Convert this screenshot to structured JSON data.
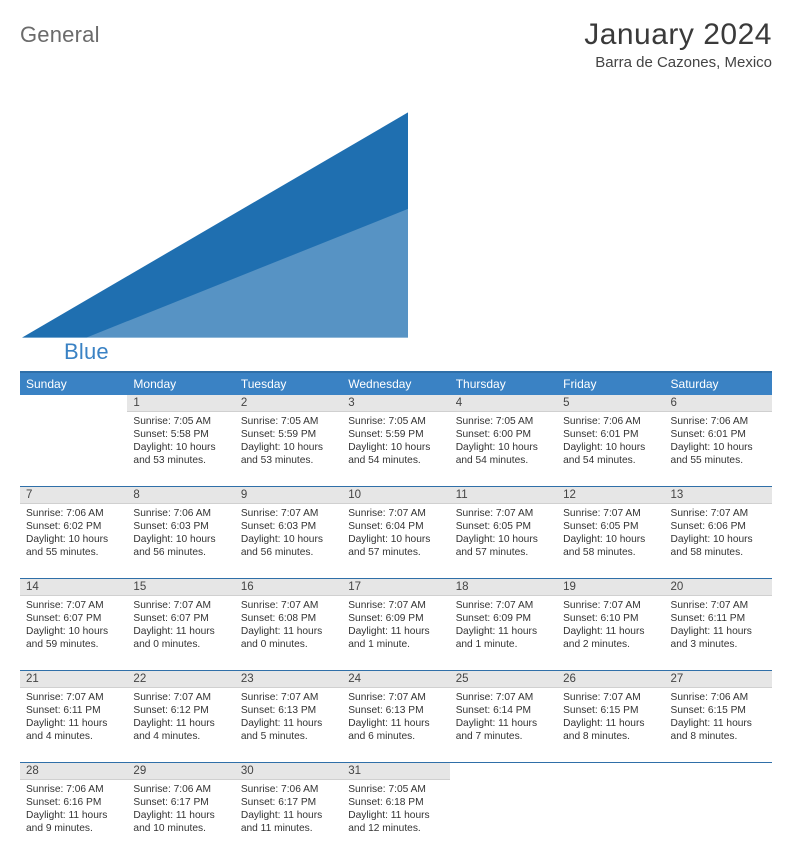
{
  "logo": {
    "word1": "General",
    "word2": "Blue",
    "tri_color": "#1f6fb0"
  },
  "title": "January 2024",
  "subtitle": "Barra de Cazones, Mexico",
  "colors": {
    "header_bg": "#3a82c4",
    "header_border": "#2f6fa8",
    "daynum_bg": "#e6e6e6",
    "text": "#333333"
  },
  "weekdays": [
    "Sunday",
    "Monday",
    "Tuesday",
    "Wednesday",
    "Thursday",
    "Friday",
    "Saturday"
  ],
  "weeks": [
    [
      null,
      {
        "n": "1",
        "sr": "7:05 AM",
        "ss": "5:58 PM",
        "dh": "10",
        "dm": "53"
      },
      {
        "n": "2",
        "sr": "7:05 AM",
        "ss": "5:59 PM",
        "dh": "10",
        "dm": "53"
      },
      {
        "n": "3",
        "sr": "7:05 AM",
        "ss": "5:59 PM",
        "dh": "10",
        "dm": "54"
      },
      {
        "n": "4",
        "sr": "7:05 AM",
        "ss": "6:00 PM",
        "dh": "10",
        "dm": "54"
      },
      {
        "n": "5",
        "sr": "7:06 AM",
        "ss": "6:01 PM",
        "dh": "10",
        "dm": "54"
      },
      {
        "n": "6",
        "sr": "7:06 AM",
        "ss": "6:01 PM",
        "dh": "10",
        "dm": "55"
      }
    ],
    [
      {
        "n": "7",
        "sr": "7:06 AM",
        "ss": "6:02 PM",
        "dh": "10",
        "dm": "55"
      },
      {
        "n": "8",
        "sr": "7:06 AM",
        "ss": "6:03 PM",
        "dh": "10",
        "dm": "56"
      },
      {
        "n": "9",
        "sr": "7:07 AM",
        "ss": "6:03 PM",
        "dh": "10",
        "dm": "56"
      },
      {
        "n": "10",
        "sr": "7:07 AM",
        "ss": "6:04 PM",
        "dh": "10",
        "dm": "57"
      },
      {
        "n": "11",
        "sr": "7:07 AM",
        "ss": "6:05 PM",
        "dh": "10",
        "dm": "57"
      },
      {
        "n": "12",
        "sr": "7:07 AM",
        "ss": "6:05 PM",
        "dh": "10",
        "dm": "58"
      },
      {
        "n": "13",
        "sr": "7:07 AM",
        "ss": "6:06 PM",
        "dh": "10",
        "dm": "58"
      }
    ],
    [
      {
        "n": "14",
        "sr": "7:07 AM",
        "ss": "6:07 PM",
        "dh": "10",
        "dm": "59"
      },
      {
        "n": "15",
        "sr": "7:07 AM",
        "ss": "6:07 PM",
        "dh": "11",
        "dm": "0"
      },
      {
        "n": "16",
        "sr": "7:07 AM",
        "ss": "6:08 PM",
        "dh": "11",
        "dm": "0"
      },
      {
        "n": "17",
        "sr": "7:07 AM",
        "ss": "6:09 PM",
        "dh": "11",
        "dm": "1"
      },
      {
        "n": "18",
        "sr": "7:07 AM",
        "ss": "6:09 PM",
        "dh": "11",
        "dm": "1"
      },
      {
        "n": "19",
        "sr": "7:07 AM",
        "ss": "6:10 PM",
        "dh": "11",
        "dm": "2"
      },
      {
        "n": "20",
        "sr": "7:07 AM",
        "ss": "6:11 PM",
        "dh": "11",
        "dm": "3"
      }
    ],
    [
      {
        "n": "21",
        "sr": "7:07 AM",
        "ss": "6:11 PM",
        "dh": "11",
        "dm": "4"
      },
      {
        "n": "22",
        "sr": "7:07 AM",
        "ss": "6:12 PM",
        "dh": "11",
        "dm": "4"
      },
      {
        "n": "23",
        "sr": "7:07 AM",
        "ss": "6:13 PM",
        "dh": "11",
        "dm": "5"
      },
      {
        "n": "24",
        "sr": "7:07 AM",
        "ss": "6:13 PM",
        "dh": "11",
        "dm": "6"
      },
      {
        "n": "25",
        "sr": "7:07 AM",
        "ss": "6:14 PM",
        "dh": "11",
        "dm": "7"
      },
      {
        "n": "26",
        "sr": "7:07 AM",
        "ss": "6:15 PM",
        "dh": "11",
        "dm": "8"
      },
      {
        "n": "27",
        "sr": "7:06 AM",
        "ss": "6:15 PM",
        "dh": "11",
        "dm": "8"
      }
    ],
    [
      {
        "n": "28",
        "sr": "7:06 AM",
        "ss": "6:16 PM",
        "dh": "11",
        "dm": "9"
      },
      {
        "n": "29",
        "sr": "7:06 AM",
        "ss": "6:17 PM",
        "dh": "11",
        "dm": "10"
      },
      {
        "n": "30",
        "sr": "7:06 AM",
        "ss": "6:17 PM",
        "dh": "11",
        "dm": "11"
      },
      {
        "n": "31",
        "sr": "7:05 AM",
        "ss": "6:18 PM",
        "dh": "11",
        "dm": "12"
      },
      null,
      null,
      null
    ]
  ],
  "labels": {
    "sunrise": "Sunrise:",
    "sunset": "Sunset:",
    "daylight_prefix": "Daylight:",
    "hours_word": "hours",
    "and_word": "and",
    "minutes_word_1": "minute.",
    "minutes_word": "minutes."
  }
}
